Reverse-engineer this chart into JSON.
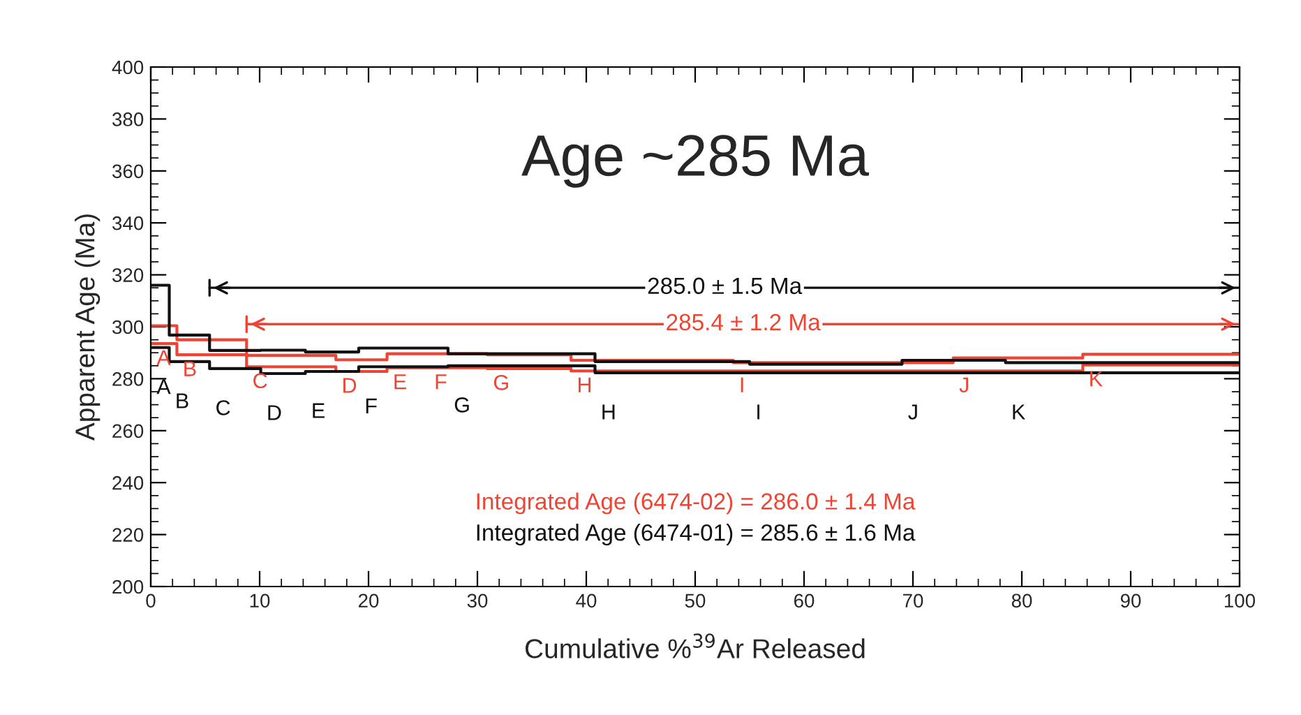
{
  "chart_data": {
    "type": "step",
    "title": "Age ~285 Ma",
    "xlabel": "Cumulative %$^{39}$Ar Released",
    "ylabel": "Apparent Age (Ma)",
    "xlim": [
      0,
      100
    ],
    "xticks": [
      0,
      10,
      20,
      30,
      40,
      50,
      60,
      70,
      80,
      90,
      100
    ],
    "ylim": [
      200,
      400
    ],
    "yticks": [
      200,
      220,
      240,
      260,
      280,
      300,
      320,
      340,
      360,
      380,
      400
    ],
    "grid": false,
    "legend": false,
    "series": [
      {
        "type": "step",
        "color": "#ee4433",
        "x": [
          0,
          2.4,
          8.8,
          17,
          21.7,
          25.5,
          30.9,
          38.6,
          53.5,
          73.7,
          85.6,
          100
        ],
        "values": [
          300.4,
          295,
          289,
          287.3,
          289.6,
          289.6,
          289.2,
          287.1,
          286.2,
          288,
          289.4,
          289.4
        ]
      },
      {
        "type": "step",
        "color": "#ee4433",
        "x": [
          0,
          2.4,
          8.8,
          17,
          21.7,
          25.5,
          30.9,
          38.6,
          53.5,
          73.7,
          85.6,
          100
        ],
        "values": [
          293.5,
          289.2,
          284.6,
          282.8,
          284.2,
          284.2,
          283.9,
          283,
          283,
          283,
          285.3,
          285.3
        ],
        "value_labels": [
          "A",
          "B",
          "C",
          "D",
          "E",
          "F",
          "G",
          "H",
          "I",
          "J",
          "K",
          null
        ]
      },
      {
        "type": "step",
        "color": "#111111",
        "x": [
          0,
          1.7,
          5.4,
          10.1,
          14.2,
          19.1,
          27.3,
          40.8,
          55,
          69,
          78.5,
          100
        ],
        "values": [
          316,
          296.8,
          290.9,
          291,
          290.3,
          291.8,
          289.6,
          286.6,
          285.6,
          287.1,
          286.2,
          286.2
        ]
      },
      {
        "type": "step",
        "color": "#111111",
        "x": [
          0,
          1.7,
          5.4,
          10.1,
          14.2,
          19.1,
          27.3,
          40.8,
          55,
          69,
          78.5,
          100
        ],
        "values": [
          292,
          286.6,
          283.9,
          282,
          282.8,
          284.6,
          285,
          282.3,
          282.3,
          282.3,
          282.3,
          282.3
        ],
        "value_labels": [
          "A",
          "B",
          "C",
          "D",
          "E",
          "F",
          "G",
          "H",
          "I",
          "J",
          "K",
          null
        ]
      },
      {
        "type": "line",
        "color": "#111111",
        "x": [
          5.4,
          100
        ],
        "values": [
          315,
          315
        ]
      },
      {
        "type": "line",
        "color": "#ee4433",
        "x": [
          8.8,
          100
        ],
        "values": [
          301,
          301
        ]
      }
    ],
    "annotations": [
      {
        "text": "285.0 ± 1.5 Ma",
        "x": 52.7,
        "y": 315
      },
      {
        "text": "285.4 ± 1.2 Ma",
        "x": 54.4,
        "y": 301
      },
      "Integrated Age (6474-02) = 286.0 ± 1.4 Ma",
      "Integrated Age (6474-01) = 285.6 ± 1.6 Ma"
    ]
  }
}
